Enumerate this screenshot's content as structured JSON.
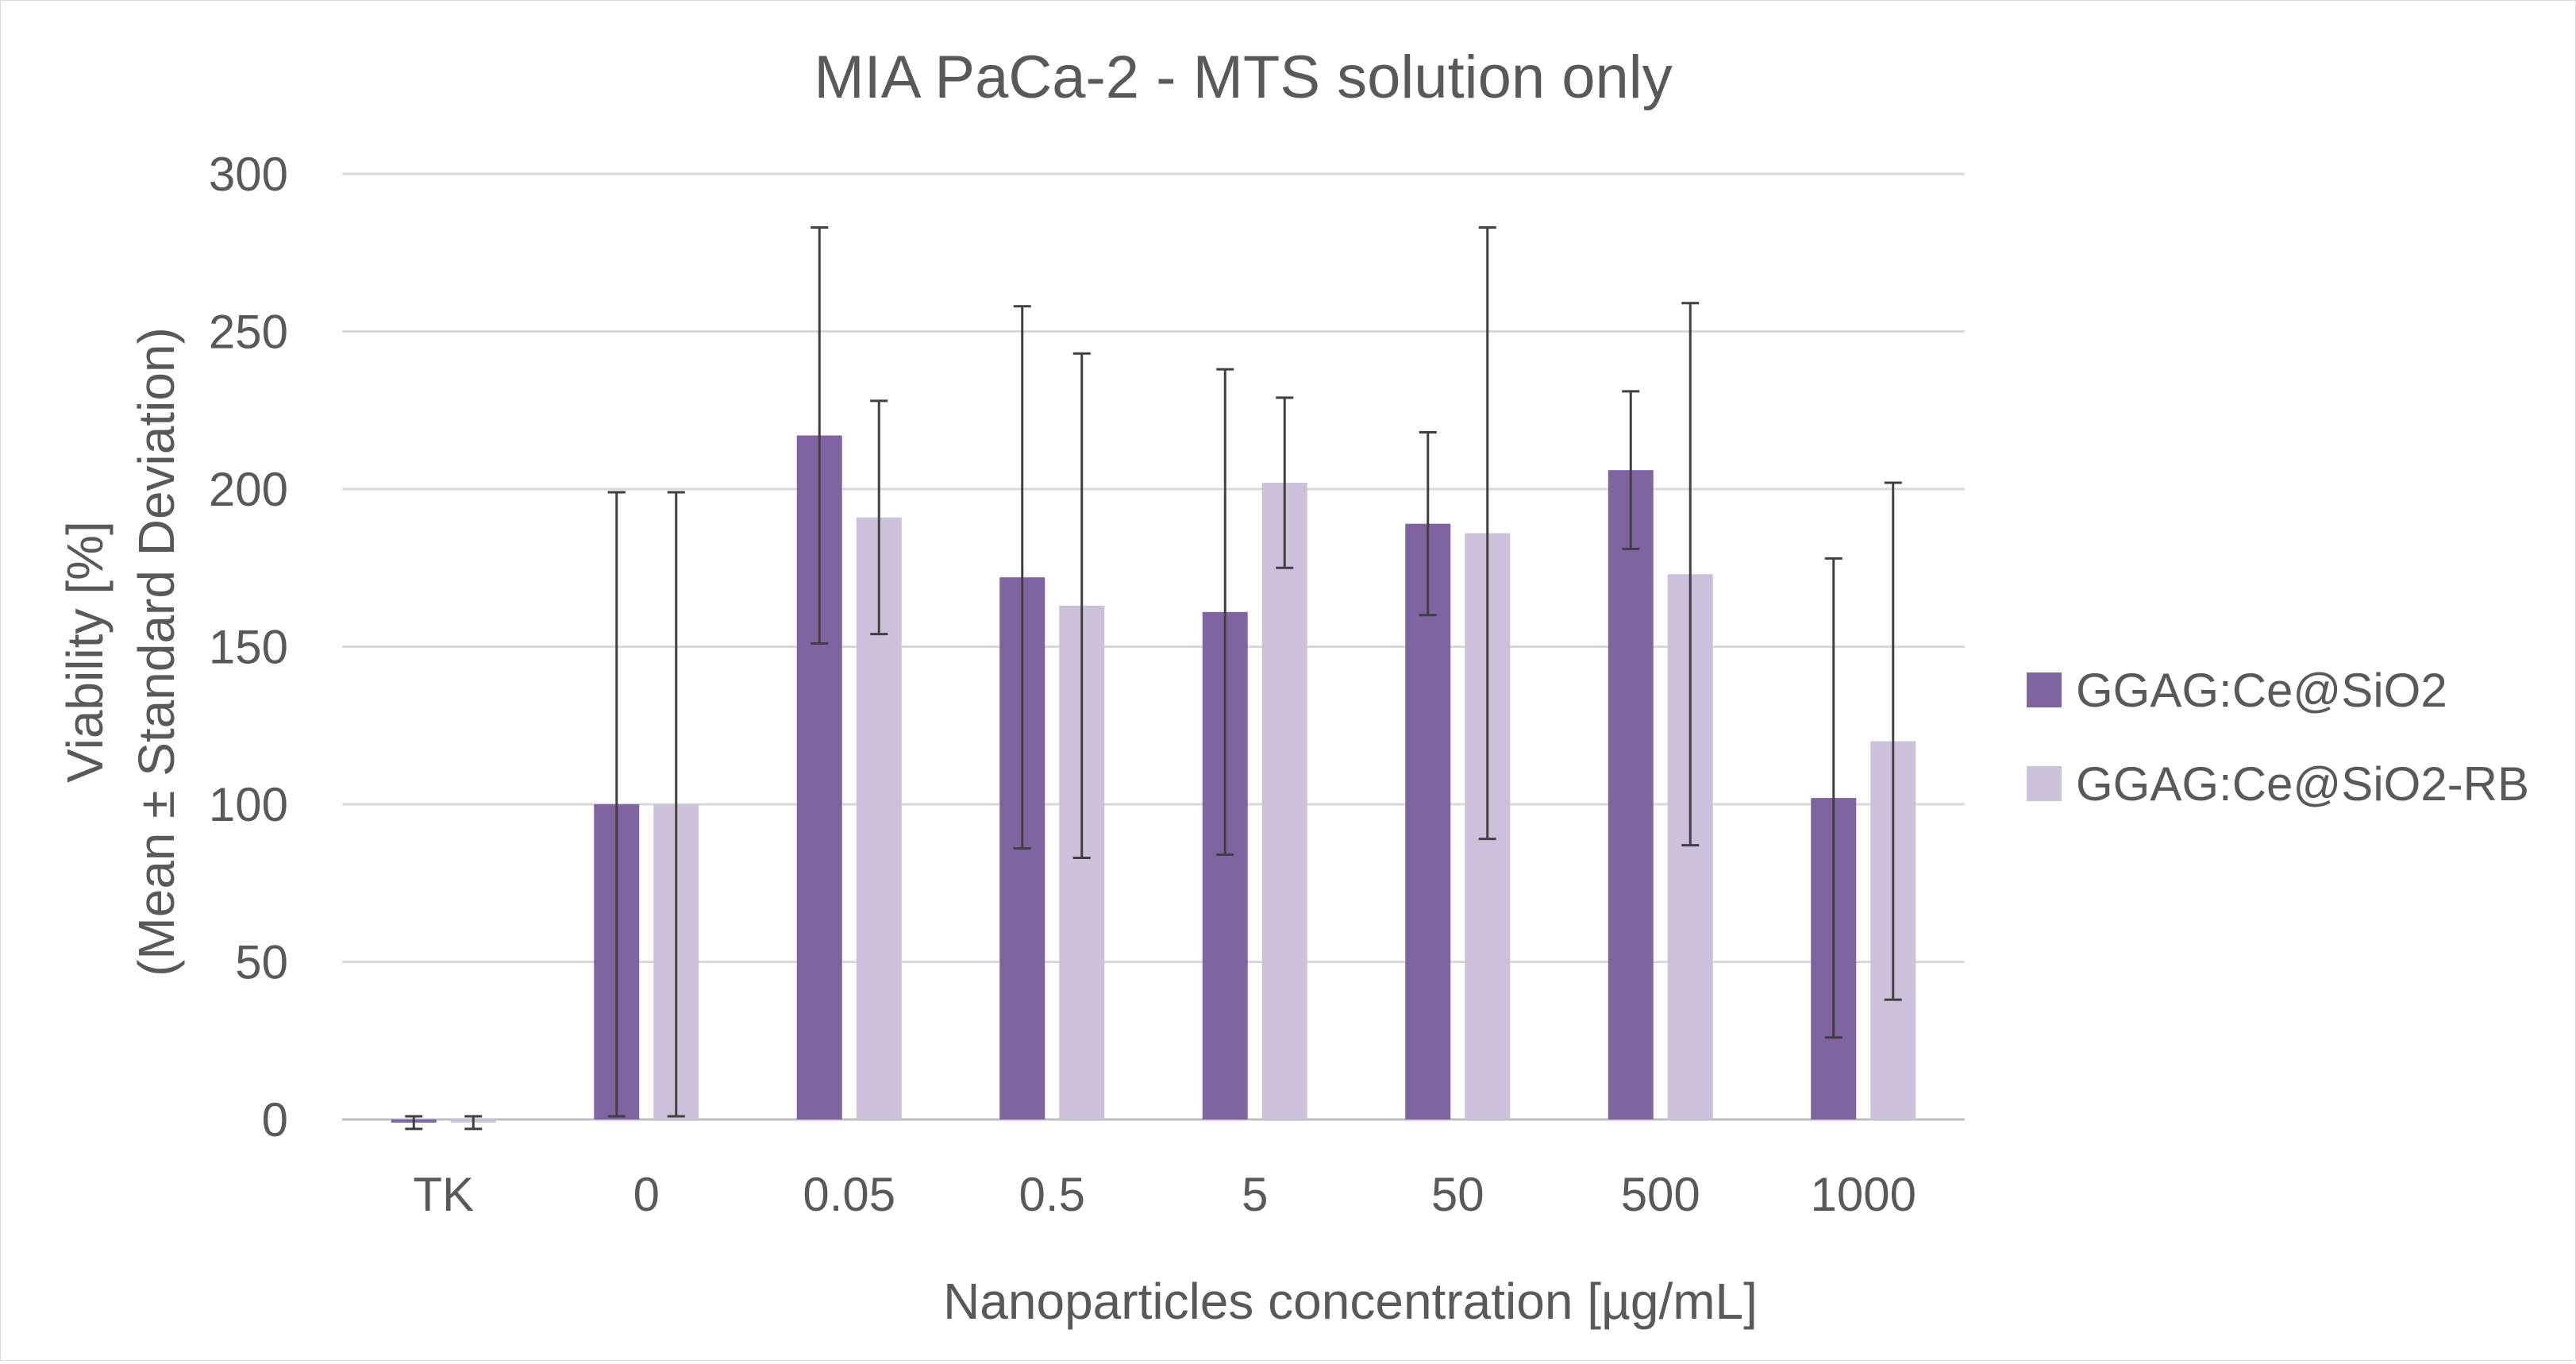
{
  "chart_data": {
    "type": "bar",
    "title": "MIA PaCa-2 - MTS solution only",
    "xlabel": "Nanoparticles concentration [µg/mL]",
    "ylabel_lines": [
      "Viability [%]",
      "(Mean ± Standard Deviation)"
    ],
    "categories": [
      "TK",
      "0",
      "0.05",
      "0.5",
      "5",
      "50",
      "500",
      "1000"
    ],
    "ylim": [
      0,
      300
    ],
    "yticks": [
      0,
      50,
      100,
      150,
      200,
      250,
      300
    ],
    "grid": true,
    "legend_position": "right",
    "series": [
      {
        "name": "GGAG:Ce@SiO2",
        "color": "#8064a2",
        "values": [
          -1,
          100,
          217,
          172,
          161,
          189,
          206,
          102
        ],
        "errors": [
          2,
          99,
          66,
          86,
          77,
          29,
          25,
          76
        ]
      },
      {
        "name": "GGAG:Ce@SiO2-RB",
        "color": "#ccc1da",
        "values": [
          -1,
          100,
          191,
          163,
          202,
          186,
          173,
          120
        ],
        "errors": [
          2,
          99,
          37,
          80,
          27,
          97,
          86,
          82
        ]
      }
    ],
    "errorbar_color": "#404040",
    "gridline_color": "#d9d9d9",
    "axis_color": "#bfbfbf"
  }
}
